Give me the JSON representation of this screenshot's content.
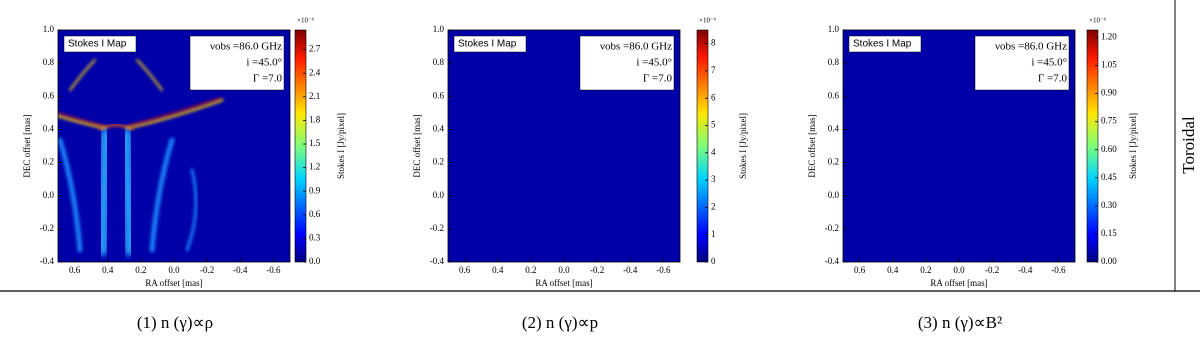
{
  "chart_data": [
    {
      "type": "heatmap",
      "title": "Stokes I Map",
      "annotations": [
        "νobs =86.0 GHz",
        "i =45.0°",
        "Γ =7.0"
      ],
      "xlabel": "RA offset [mas]",
      "ylabel": "DEC offset [mas]",
      "xlim": [
        0.7,
        -0.7
      ],
      "xticks": [
        0.6,
        0.4,
        0.2,
        {
          "value": 0,
          "label": "0.0"
        },
        -0.2,
        -0.4,
        -0.6
      ],
      "ylim": [
        -0.4,
        1.0
      ],
      "yticks": [
        -0.4,
        -0.2,
        {
          "value": 0,
          "label": "0.0"
        },
        0.2,
        0.4,
        0.6,
        0.8,
        {
          "value": 1,
          "label": "1.0"
        }
      ],
      "colorbar_label": "Stokes I [Jy/pixel]",
      "colorbar_scale": "×10⁻⁶",
      "clim": [
        0,
        2.95
      ],
      "cticks": [
        {
          "value": 0,
          "label": "0.0"
        },
        0.3,
        0.6,
        0.9,
        1.2,
        1.5,
        1.8,
        2.1,
        2.4,
        2.7
      ],
      "caption": "(1) n (γ)∝ρ"
    },
    {
      "type": "heatmap",
      "title": "Stokes I Map",
      "annotations": [
        "νobs =86.0 GHz",
        "i =45.0°",
        "Γ =7.0"
      ],
      "xlabel": "RA offset [mas]",
      "ylabel": "DEC offset [mas]",
      "xlim": [
        0.7,
        -0.7
      ],
      "xticks": [
        0.6,
        0.4,
        0.2,
        {
          "value": 0,
          "label": "0.0"
        },
        -0.2,
        -0.4,
        -0.6
      ],
      "ylim": [
        -0.4,
        1.0
      ],
      "yticks": [
        -0.4,
        -0.2,
        {
          "value": 0,
          "label": "0.0"
        },
        0.2,
        0.4,
        0.6,
        0.8,
        {
          "value": 1,
          "label": "1.0"
        }
      ],
      "colorbar_label": "Stokes I [Jy/pixel]",
      "colorbar_scale": "×10⁻⁶",
      "clim": [
        0,
        8.5
      ],
      "cticks": [
        0,
        1,
        2,
        3,
        4,
        5,
        6,
        7,
        8
      ],
      "caption": "(2) n (γ)∝p"
    },
    {
      "type": "heatmap",
      "title": "Stokes I Map",
      "annotations": [
        "νobs =86.0 GHz",
        "i =45.0°",
        "Γ =7.0"
      ],
      "xlabel": "RA offset [mas]",
      "ylabel": "DEC offset [mas]",
      "xlim": [
        0.7,
        -0.7
      ],
      "xticks": [
        0.6,
        0.4,
        0.2,
        {
          "value": 0,
          "label": "0.0"
        },
        -0.2,
        -0.4,
        -0.6
      ],
      "ylim": [
        -0.4,
        1.0
      ],
      "yticks": [
        -0.4,
        -0.2,
        {
          "value": 0,
          "label": "0.0"
        },
        0.2,
        0.4,
        0.6,
        0.8,
        {
          "value": 1,
          "label": "1.0"
        }
      ],
      "colorbar_label": "Stokes I [Jy/pixel]",
      "colorbar_scale": "×10⁻⁶",
      "clim": [
        0,
        1.24
      ],
      "cticks": [
        {
          "value": 0,
          "label": "0.00"
        },
        0.15,
        {
          "value": 0.3,
          "label": "0.30"
        },
        0.45,
        {
          "value": 0.6,
          "label": "0.60"
        },
        0.75,
        {
          "value": 0.9,
          "label": "0.90"
        },
        1.05,
        {
          "value": 1.2,
          "label": "1.20"
        }
      ],
      "caption": "(3) n (γ)∝B²"
    }
  ],
  "row_label": "Toroidal"
}
